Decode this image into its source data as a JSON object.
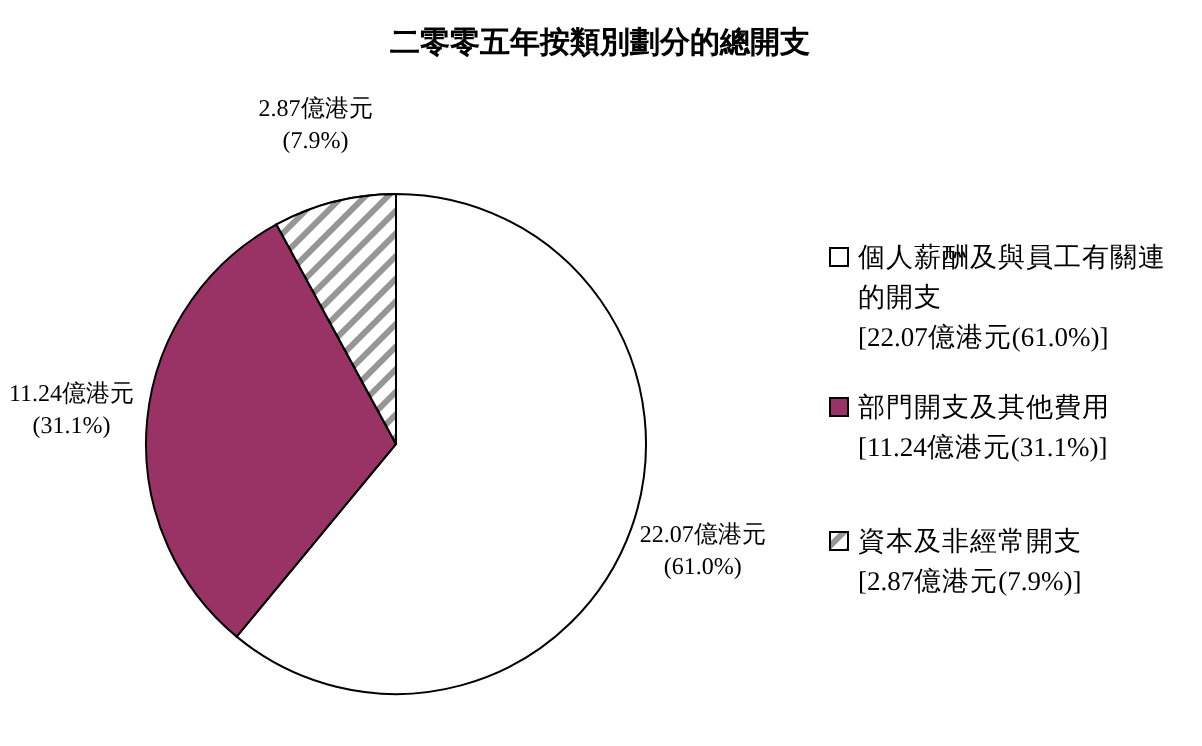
{
  "chart_data": {
    "type": "pie",
    "title": "二零零五年按類別劃分的總開支",
    "categories": [
      "個人薪酬及與員工有關連的開支\n[22.07億港元(61.0%)]",
      "部門開支及其他費用\n[11.24億港元(31.1%)]",
      "資本及非經常開支\n[2.87億港元(7.9%)]"
    ],
    "values": [
      22.07,
      11.24,
      2.87
    ],
    "colors": [
      "#ffffff",
      "#993366",
      "#969696"
    ],
    "value_labels": [
      "22.07億港元\n(61.0%)",
      "11.24億港元\n(31.1%)",
      "2.87億港元\n(7.9%)"
    ],
    "legend": "right"
  }
}
